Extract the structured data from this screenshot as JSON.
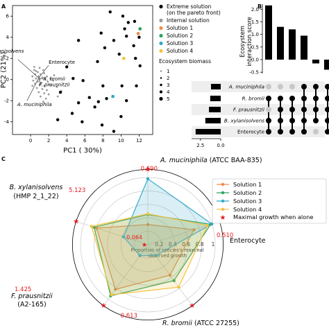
{
  "panel_letters": {
    "a": "A",
    "b": "B",
    "c": "C"
  },
  "colors": {
    "extreme": "#000000",
    "internal": "#9a9a9a",
    "solution1": "#f08a4b",
    "solution2": "#2ca25f",
    "solution3": "#31a9c9",
    "solution4": "#f5c142",
    "star": "#e41a1c",
    "grey_dot": "#c8c8c8"
  },
  "chart_data": [
    {
      "type": "scatter",
      "title": "",
      "xlabel": "PC1 ( 30%)",
      "ylabel": "PC2 (21%)",
      "xlim": [
        -2,
        13.5
      ],
      "ylim": [
        -5.2,
        7
      ],
      "xticks": [
        0,
        2,
        4,
        6,
        8,
        10,
        12
      ],
      "yticks": [
        -4,
        -2,
        0,
        2,
        4,
        6
      ],
      "grid": false,
      "legend": {
        "placement": "right",
        "items": [
          {
            "label": "Extreme solution",
            "label2": "(on the pareto front)",
            "color": "#000000"
          },
          {
            "label": "Internal solution",
            "color": "#9a9a9a"
          },
          {
            "label": "Solution 1",
            "color": "#f08a4b"
          },
          {
            "label": "Solution 2",
            "color": "#2ca25f"
          },
          {
            "label": "Solution 3",
            "color": "#31a9c9"
          },
          {
            "label": "Solution 4",
            "color": "#f5c142"
          }
        ],
        "size_title": "Ecosystem biomass",
        "size_items": [
          "1",
          "2",
          "3",
          "4",
          "5"
        ]
      },
      "extreme_points": [
        [
          8.8,
          6.4
        ],
        [
          10.2,
          6.0
        ],
        [
          10.8,
          5.4
        ],
        [
          10.4,
          4.8
        ],
        [
          11.5,
          5.5
        ],
        [
          7.8,
          4.4
        ],
        [
          10.6,
          4.1
        ],
        [
          9.2,
          3.7
        ],
        [
          12.0,
          4.0
        ],
        [
          11.4,
          3.2
        ],
        [
          8.2,
          3.0
        ],
        [
          5.3,
          3.7
        ],
        [
          9.8,
          2.4
        ],
        [
          11.6,
          2.0
        ],
        [
          12.1,
          1.3
        ],
        [
          7.4,
          1.7
        ],
        [
          4.0,
          1.2
        ],
        [
          4.7,
          0.1
        ],
        [
          5.8,
          -0.1
        ],
        [
          8.0,
          -0.6
        ],
        [
          10.1,
          -0.6
        ],
        [
          11.7,
          -0.6
        ],
        [
          3.3,
          -1.2
        ],
        [
          6.5,
          -1.7
        ],
        [
          8.4,
          -1.8
        ],
        [
          10.6,
          -2.0
        ],
        [
          5.3,
          -2.2
        ],
        [
          7.1,
          -2.6
        ],
        [
          4.6,
          -3.2
        ],
        [
          10.0,
          -3.5
        ],
        [
          3.0,
          -3.8
        ],
        [
          5.7,
          -4.0
        ],
        [
          7.9,
          -4.3
        ],
        [
          9.2,
          -4.9
        ],
        [
          7.5,
          -2.1
        ]
      ],
      "internal_points": [
        [
          0.4,
          0.9
        ],
        [
          0.8,
          0.7
        ],
        [
          1.1,
          0.5
        ],
        [
          0.5,
          0.5
        ],
        [
          1.5,
          0.6
        ],
        [
          0.2,
          0.3
        ],
        [
          0.9,
          0.3
        ],
        [
          1.3,
          0.2
        ],
        [
          1.8,
          0.3
        ],
        [
          0.6,
          0.1
        ],
        [
          1.0,
          0.0
        ],
        [
          1.6,
          0.0
        ],
        [
          2.2,
          0.1
        ],
        [
          0.3,
          -0.1
        ],
        [
          0.8,
          -0.2
        ],
        [
          1.2,
          -0.3
        ],
        [
          1.9,
          -0.2
        ],
        [
          2.5,
          -0.1
        ],
        [
          0.5,
          -0.4
        ],
        [
          1.0,
          -0.5
        ],
        [
          1.5,
          -0.6
        ],
        [
          2.1,
          -0.5
        ],
        [
          0.7,
          -0.8
        ],
        [
          1.3,
          -0.9
        ],
        [
          1.8,
          -1.0
        ],
        [
          0.9,
          -1.2
        ],
        [
          1.5,
          -1.3
        ],
        [
          2.0,
          -1.4
        ],
        [
          1.1,
          -1.6
        ],
        [
          1.7,
          -1.8
        ],
        [
          3.0,
          -1.6
        ],
        [
          1.4,
          -2.1
        ],
        [
          0.6,
          0.8
        ],
        [
          1.4,
          0.9
        ],
        [
          2.6,
          0.4
        ],
        [
          2.9,
          -0.7
        ],
        [
          3.4,
          -1.1
        ],
        [
          0.2,
          -0.6
        ],
        [
          0.4,
          1.2
        ],
        [
          1.0,
          1.1
        ]
      ],
      "highlighted": [
        {
          "name": "Solution 1",
          "x": 11.9,
          "y": 4.35,
          "color": "#f08a4b"
        },
        {
          "name": "Solution 2",
          "x": 12.1,
          "y": 4.8,
          "color": "#2ca25f"
        },
        {
          "name": "Solution 3",
          "x": 9.1,
          "y": -1.6,
          "color": "#31a9c9"
        },
        {
          "name": "Solution 4",
          "x": 10.3,
          "y": 2.0,
          "color": "#f5c142"
        }
      ],
      "loadings": [
        {
          "label": "B. xylanisolvens",
          "italic": true,
          "x": -1.4,
          "y": 1.9
        },
        {
          "label": "Enterocyte",
          "italic": false,
          "x": 2.0,
          "y": 1.35
        },
        {
          "label": "R. bromii",
          "italic": true,
          "x": 1.4,
          "y": 0.05
        },
        {
          "label": "F. prausnitzii",
          "italic": true,
          "x": 1.1,
          "y": -0.45
        },
        {
          "label": "A. muciniphila",
          "italic": true,
          "x": -0.4,
          "y": -2.0
        }
      ]
    },
    {
      "type": "bar",
      "title": "",
      "ylabel": "Ecosystem interaction score",
      "ylim": [
        -0.55,
        2.2
      ],
      "yticks": [
        -0.5,
        0.0,
        0.5,
        1.0,
        1.5,
        2.0
      ],
      "values": [
        2.15,
        1.3,
        1.2,
        0.95,
        -0.15,
        -0.4
      ],
      "grid": false
    },
    {
      "type": "table",
      "title": "",
      "species": [
        "A. muciniphila",
        "R. bromii",
        "F. prausnitzii",
        "B. xylanisolvens",
        "Enterocyte"
      ],
      "single_bar_values": [
        1.2,
        1.3,
        1.45,
        1.9,
        3.1
      ],
      "xticks": [
        "2.5",
        "0.0"
      ],
      "xlim": [
        3.6,
        0
      ],
      "membership": [
        [
          0,
          1,
          0,
          1,
          1
        ],
        [
          0,
          1,
          1,
          1,
          1
        ],
        [
          0,
          1,
          1,
          1,
          1
        ],
        [
          1,
          1,
          1,
          1,
          1
        ],
        [
          1,
          1,
          1,
          1,
          0
        ],
        [
          1,
          1,
          1,
          1,
          1
        ]
      ]
    },
    {
      "type": "radar",
      "title": "",
      "axes": [
        {
          "label": "A. muciniphila",
          "italic": true,
          "suffix": " (ATCC BAA-835)",
          "suffix2": "",
          "star_value": "0.690"
        },
        {
          "label": "Enterocyte",
          "italic": false,
          "suffix": "",
          "suffix2": "",
          "star_value": "0.510"
        },
        {
          "label": "R. bromii",
          "italic": true,
          "suffix": " (ATCC 27255)",
          "suffix2": "",
          "star_value": "0.613"
        },
        {
          "label": "F. prausnitzii",
          "italic": true,
          "suffix": "",
          "suffix2": "(A2-165)",
          "star_value": "1.425"
        },
        {
          "label": "B. xylanisolvens",
          "italic": true,
          "suffix": "",
          "suffix2": "(HMP 2_1_22)",
          "star_value": "5.123"
        }
      ],
      "center_value": "0.064",
      "radial_ticks": [
        "0.2",
        "0.4",
        "0.6",
        "0.8",
        "1"
      ],
      "radial_label": "Proportion of species's maximal",
      "radial_label2": "observed growth",
      "series": [
        {
          "name": "Solution 1",
          "color": "#f08a4b",
          "values": [
            0.3,
            0.72,
            0.56,
            0.82,
            0.8
          ]
        },
        {
          "name": "Solution 2",
          "color": "#2ca25f",
          "values": [
            0.45,
            0.98,
            0.66,
            0.94,
            0.84
          ]
        },
        {
          "name": "Solution 3",
          "color": "#31a9c9",
          "values": [
            0.98,
            1.0,
            0.2,
            0.2,
            0.38
          ]
        },
        {
          "name": "Solution 4",
          "color": "#f5c142",
          "values": [
            0.46,
            0.93,
            0.78,
            0.92,
            0.88
          ]
        }
      ],
      "star_label": "Maximal growth when alone",
      "star_radius": 1.12,
      "grid": true,
      "legend_placement": "right"
    }
  ]
}
